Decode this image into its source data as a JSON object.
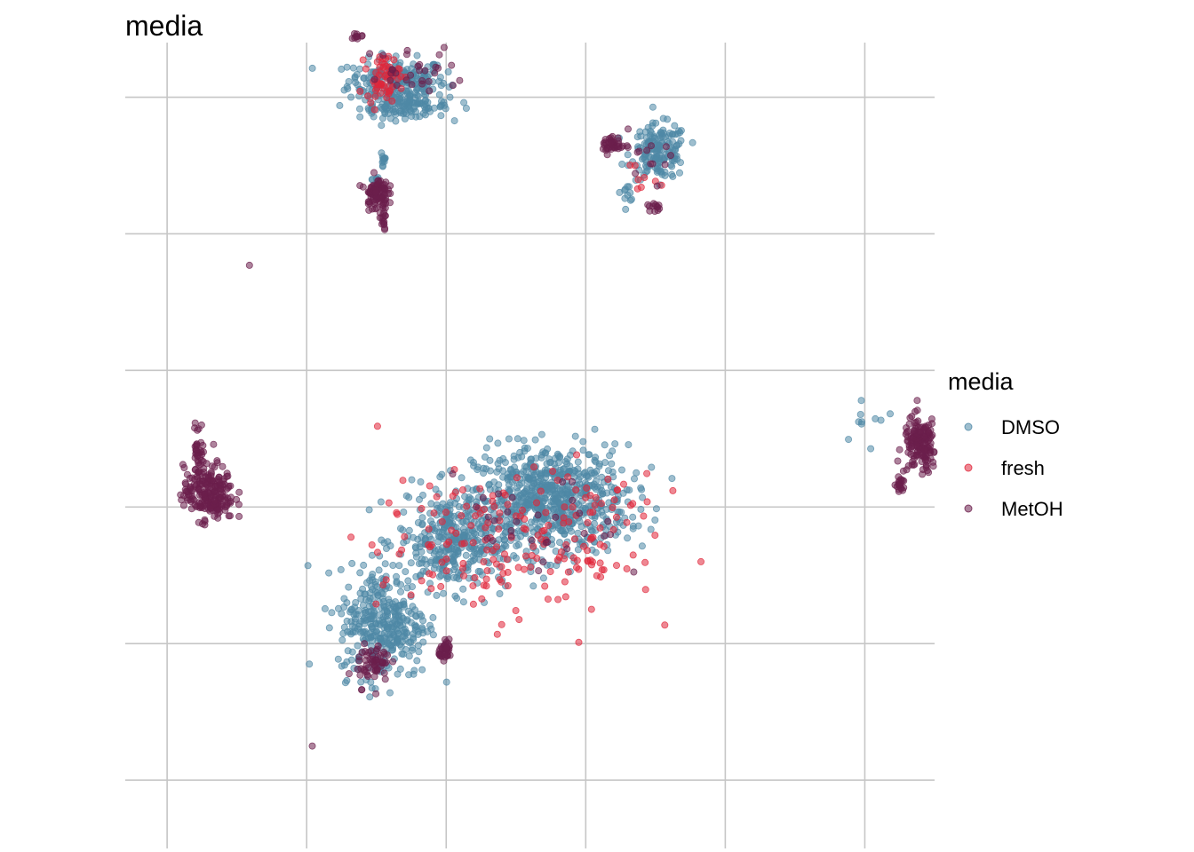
{
  "chart_data": {
    "type": "scatter",
    "title": "media",
    "xlabel": "",
    "ylabel": "",
    "grid": true,
    "axis_tick_labels_visible": false,
    "legend": {
      "title": "media",
      "position": "right",
      "entries": [
        "DMSO",
        "fresh",
        "MetOH"
      ]
    },
    "colors": {
      "DMSO": "#4f88a6",
      "fresh": "#e0263a",
      "MetOH": "#6b1f4c"
    },
    "point_alpha": 0.55,
    "xlim": [
      -2.6,
      9.0
    ],
    "ylim": [
      -0.5,
      5.4
    ],
    "x_gridlines": [
      -2,
      0,
      2,
      4,
      6,
      8
    ],
    "y_gridlines": [
      0,
      1,
      2,
      3,
      4,
      5
    ],
    "clusters": [
      {
        "series": "MetOH",
        "x": -1.4,
        "y": 2.1,
        "sx": 0.18,
        "sy": 0.1,
        "n": 220
      },
      {
        "series": "MetOH",
        "x": -1.55,
        "y": 2.4,
        "sx": 0.04,
        "sy": 0.12,
        "n": 40
      },
      {
        "series": "MetOH",
        "x": -0.82,
        "y": 3.77,
        "sx": 0.0,
        "sy": 0.0,
        "n": 1
      },
      {
        "series": "MetOH",
        "x": 0.08,
        "y": 0.25,
        "sx": 0.0,
        "sy": 0.0,
        "n": 1
      },
      {
        "series": "fresh",
        "x": 1.1,
        "y": 5.15,
        "sx": 0.12,
        "sy": 0.08,
        "n": 60
      },
      {
        "series": "DMSO",
        "x": 1.3,
        "y": 5.12,
        "sx": 0.35,
        "sy": 0.08,
        "n": 220
      },
      {
        "series": "DMSO",
        "x": 1.4,
        "y": 4.93,
        "sx": 0.32,
        "sy": 0.04,
        "n": 120
      },
      {
        "series": "MetOH",
        "x": 0.75,
        "y": 5.5,
        "sx": 0.06,
        "sy": 0.04,
        "n": 30
      },
      {
        "series": "MetOH",
        "x": 1.6,
        "y": 5.18,
        "sx": 0.35,
        "sy": 0.1,
        "n": 30
      },
      {
        "series": "DMSO",
        "x": 1.1,
        "y": 4.55,
        "sx": 0.02,
        "sy": 0.05,
        "n": 12
      },
      {
        "series": "MetOH",
        "x": 1.0,
        "y": 4.3,
        "sx": 0.08,
        "sy": 0.06,
        "n": 90
      },
      {
        "series": "MetOH",
        "x": 1.1,
        "y": 4.12,
        "sx": 0.02,
        "sy": 0.06,
        "n": 15
      },
      {
        "series": "DMSO",
        "x": 1.0,
        "y": 4.4,
        "sx": 0.03,
        "sy": 0.03,
        "n": 8
      },
      {
        "series": "DMSO",
        "x": 5.05,
        "y": 4.6,
        "sx": 0.2,
        "sy": 0.1,
        "n": 160
      },
      {
        "series": "MetOH",
        "x": 4.4,
        "y": 4.65,
        "sx": 0.08,
        "sy": 0.03,
        "n": 40
      },
      {
        "series": "MetOH",
        "x": 4.9,
        "y": 4.6,
        "sx": 0.2,
        "sy": 0.08,
        "n": 12
      },
      {
        "series": "fresh",
        "x": 4.9,
        "y": 4.4,
        "sx": 0.15,
        "sy": 0.08,
        "n": 8
      },
      {
        "series": "DMSO",
        "x": 4.6,
        "y": 4.3,
        "sx": 0.05,
        "sy": 0.03,
        "n": 10
      },
      {
        "series": "MetOH",
        "x": 5.0,
        "y": 4.2,
        "sx": 0.06,
        "sy": 0.02,
        "n": 12
      },
      {
        "series": "DMSO",
        "x": 3.5,
        "y": 2.05,
        "sx": 0.55,
        "sy": 0.2,
        "n": 700
      },
      {
        "series": "DMSO",
        "x": 2.1,
        "y": 1.75,
        "sx": 0.4,
        "sy": 0.18,
        "n": 350
      },
      {
        "series": "DMSO",
        "x": 1.1,
        "y": 1.15,
        "sx": 0.32,
        "sy": 0.2,
        "n": 350
      },
      {
        "series": "fresh",
        "x": 2.6,
        "y": 1.7,
        "sx": 0.8,
        "sy": 0.25,
        "n": 140
      },
      {
        "series": "fresh",
        "x": 4.0,
        "y": 1.9,
        "sx": 0.5,
        "sy": 0.3,
        "n": 60
      },
      {
        "series": "MetOH",
        "x": 3.3,
        "y": 1.8,
        "sx": 0.6,
        "sy": 0.2,
        "n": 30
      },
      {
        "series": "MetOH",
        "x": 0.95,
        "y": 0.85,
        "sx": 0.12,
        "sy": 0.08,
        "n": 60
      },
      {
        "series": "MetOH",
        "x": 2.0,
        "y": 0.95,
        "sx": 0.05,
        "sy": 0.03,
        "n": 40
      },
      {
        "series": "DMSO",
        "x": 8.0,
        "y": 2.62,
        "sx": 0.28,
        "sy": 0.12,
        "n": 10
      },
      {
        "series": "MetOH",
        "x": 8.8,
        "y": 2.45,
        "sx": 0.12,
        "sy": 0.1,
        "n": 160
      },
      {
        "series": "MetOH",
        "x": 8.5,
        "y": 2.2,
        "sx": 0.05,
        "sy": 0.05,
        "n": 20
      }
    ]
  }
}
